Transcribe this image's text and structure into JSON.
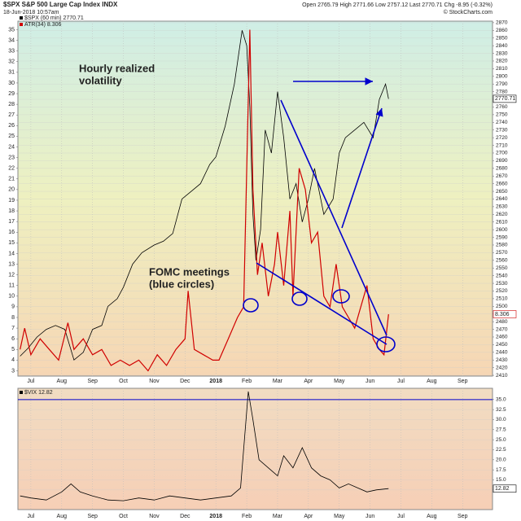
{
  "chart_data": [
    {
      "type": "line",
      "title": "$SPX S&P 500 Large Cap Index INDX",
      "subtitle": "18-Jun-2018 10:57am",
      "quote": "Open 2765.79 High 2771.66 Low 2757.12 Last 2770.71 Chg -8.95 (-0.32%)",
      "source": "© StockCharts.com",
      "annotations": [
        {
          "lines": [
            "Hourly realized",
            "volatility"
          ],
          "color": "#e00000"
        },
        {
          "lines": [
            "FOMC meetings",
            "(blue circles)"
          ],
          "color": "#0000cc"
        }
      ],
      "xlim": [
        0.58,
        15.97
      ],
      "xticks": [
        {
          "value": 1,
          "label": "Jul"
        },
        {
          "value": 2,
          "label": "Aug"
        },
        {
          "value": 3,
          "label": "Sep"
        },
        {
          "value": 4,
          "label": "Oct"
        },
        {
          "value": 5,
          "label": "Nov"
        },
        {
          "value": 6,
          "label": "Dec"
        },
        {
          "value": 7,
          "label": "2018"
        },
        {
          "value": 8,
          "label": "Feb"
        },
        {
          "value": 9,
          "label": "Mar"
        },
        {
          "value": 10,
          "label": "Apr"
        },
        {
          "value": 11,
          "label": "May"
        },
        {
          "value": 12,
          "label": "Jun"
        },
        {
          "value": 13,
          "label": "Jul"
        },
        {
          "value": 14,
          "label": "Aug"
        },
        {
          "value": 15,
          "label": "Sep"
        }
      ],
      "ylim": [
        2.5,
        35.8
      ],
      "yticks": [
        3,
        4,
        5,
        6,
        7,
        8,
        9,
        10,
        11,
        12,
        13,
        14,
        15,
        16,
        17,
        18,
        19,
        20,
        21,
        22,
        23,
        24,
        25,
        26,
        27,
        28,
        29,
        30,
        31,
        32,
        33,
        34,
        35
      ],
      "y2lim": [
        2409,
        2872
      ],
      "y2ticks": [
        2410,
        2420,
        2430,
        2440,
        2450,
        2460,
        2470,
        2480,
        2490,
        2500,
        2510,
        2520,
        2530,
        2540,
        2550,
        2560,
        2570,
        2580,
        2590,
        2600,
        2610,
        2620,
        2630,
        2640,
        2650,
        2660,
        2670,
        2680,
        2690,
        2700,
        2710,
        2720,
        2730,
        2740,
        2750,
        2760,
        2770,
        2780,
        2790,
        2800,
        2810,
        2820,
        2830,
        2840,
        2850,
        2860,
        2870
      ],
      "grid": true,
      "series": [
        {
          "name": "$SPX (60 min) 2770.71",
          "color": "#000000",
          "axis": "y2",
          "x": [
            0.65,
            0.9,
            1.2,
            1.5,
            1.8,
            2.1,
            2.4,
            2.7,
            3.0,
            3.3,
            3.5,
            3.8,
            4.0,
            4.3,
            4.6,
            5.0,
            5.3,
            5.6,
            5.9,
            6.2,
            6.5,
            6.8,
            7.0,
            7.3,
            7.6,
            7.85,
            8.0,
            8.1,
            8.2,
            8.3,
            8.45,
            8.6,
            8.8,
            9.0,
            9.2,
            9.4,
            9.6,
            9.8,
            10.0,
            10.2,
            10.5,
            10.8,
            11.0,
            11.2,
            11.5,
            11.8,
            12.1,
            12.3,
            12.5,
            12.6
          ],
          "values": [
            2435,
            2445,
            2460,
            2470,
            2475,
            2470,
            2430,
            2440,
            2470,
            2475,
            2500,
            2510,
            2525,
            2555,
            2570,
            2580,
            2585,
            2595,
            2640,
            2650,
            2660,
            2685,
            2695,
            2735,
            2790,
            2860,
            2840,
            2760,
            2620,
            2560,
            2600,
            2730,
            2700,
            2780,
            2720,
            2640,
            2660,
            2610,
            2640,
            2680,
            2620,
            2640,
            2700,
            2720,
            2730,
            2740,
            2720,
            2770,
            2790,
            2770.71
          ]
        },
        {
          "name": "ATR(34) 8.306",
          "color": "#d00000",
          "axis": "y",
          "x": [
            0.65,
            0.8,
            1.0,
            1.3,
            1.6,
            1.9,
            2.2,
            2.4,
            2.7,
            3.0,
            3.3,
            3.6,
            3.9,
            4.2,
            4.5,
            4.8,
            5.1,
            5.4,
            5.7,
            6.0,
            6.1,
            6.3,
            6.6,
            6.9,
            7.1,
            7.4,
            7.7,
            7.9,
            8.1,
            8.2,
            8.35,
            8.5,
            8.7,
            8.9,
            9.0,
            9.2,
            9.4,
            9.5,
            9.7,
            9.9,
            10.1,
            10.3,
            10.5,
            10.7,
            10.9,
            11.1,
            11.3,
            11.5,
            11.7,
            11.9,
            12.1,
            12.3,
            12.45,
            12.6
          ],
          "values": [
            5,
            7,
            4.5,
            6,
            5,
            4,
            7.5,
            5,
            6,
            4.5,
            5,
            3.5,
            4,
            3.5,
            4,
            3,
            4.5,
            3.5,
            5,
            6,
            10.5,
            5,
            4.5,
            4,
            4,
            6,
            8,
            9,
            35,
            20,
            12,
            15,
            10,
            13,
            16,
            11,
            18,
            10,
            22,
            20,
            15,
            16,
            10,
            9,
            13,
            9,
            8,
            7,
            9,
            11,
            6,
            5,
            4.5,
            8.306
          ]
        }
      ]
    },
    {
      "type": "line",
      "xlim": [
        0.58,
        15.97
      ],
      "xticks": [
        {
          "value": 1,
          "label": "Jul"
        },
        {
          "value": 2,
          "label": "Aug"
        },
        {
          "value": 3,
          "label": "Sep"
        },
        {
          "value": 4,
          "label": "Oct"
        },
        {
          "value": 5,
          "label": "Nov"
        },
        {
          "value": 6,
          "label": "Dec"
        },
        {
          "value": 7,
          "label": "2018"
        },
        {
          "value": 8,
          "label": "Feb"
        },
        {
          "value": 9,
          "label": "Mar"
        },
        {
          "value": 10,
          "label": "Apr"
        },
        {
          "value": 11,
          "label": "May"
        },
        {
          "value": 12,
          "label": "Jun"
        },
        {
          "value": 13,
          "label": "Jul"
        },
        {
          "value": 14,
          "label": "Aug"
        },
        {
          "value": 15,
          "label": "Sep"
        }
      ],
      "y2lim": [
        7.6,
        37.8
      ],
      "y2ticks": [
        {
          "value": 35,
          "label": "35.0"
        },
        {
          "value": 32.5,
          "label": "32.5"
        },
        {
          "value": 30,
          "label": "30.0"
        },
        {
          "value": 27.5,
          "label": "27.5"
        },
        {
          "value": 25,
          "label": "25.0"
        },
        {
          "value": 22.5,
          "label": "22.5"
        },
        {
          "value": 20,
          "label": "20.0"
        },
        {
          "value": 17.5,
          "label": "17.5"
        },
        {
          "value": 15,
          "label": "15.0"
        },
        {
          "value": 12.5,
          "label": "12.5"
        }
      ],
      "grid": true,
      "reference_line": {
        "value": 35,
        "color": "#0000cc"
      },
      "series": [
        {
          "name": "$VIX 12.82",
          "color": "#000000",
          "axis": "y2",
          "x": [
            0.65,
            1.0,
            1.5,
            2.0,
            2.3,
            2.6,
            3.0,
            3.5,
            4.0,
            4.5,
            5.0,
            5.5,
            6.0,
            6.5,
            7.0,
            7.5,
            7.8,
            8.05,
            8.2,
            8.4,
            8.7,
            9.0,
            9.2,
            9.5,
            9.8,
            10.1,
            10.4,
            10.7,
            11.0,
            11.3,
            11.6,
            11.9,
            12.2,
            12.6
          ],
          "values": [
            11,
            10.5,
            10,
            12,
            14,
            12,
            11,
            10,
            9.8,
            10.5,
            10,
            11,
            10.5,
            10,
            10.5,
            11,
            13,
            37,
            30,
            20,
            18,
            16,
            21,
            18,
            23,
            18,
            16,
            15,
            13,
            14,
            13,
            12,
            12.5,
            12.82
          ]
        }
      ]
    }
  ]
}
